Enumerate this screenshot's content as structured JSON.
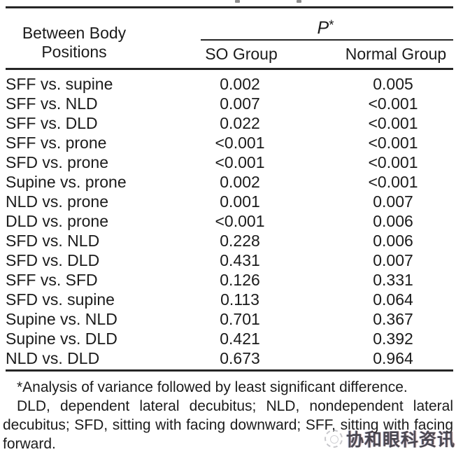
{
  "header": {
    "row_label_line1": "Between Body",
    "row_label_line2": "Positions",
    "p_label": "P",
    "p_star": "*",
    "so_group": "SO Group",
    "normal_group": "Normal Group"
  },
  "rows": [
    {
      "label": "SFF vs. supine",
      "so": "0.002",
      "normal": "0.005"
    },
    {
      "label": "SFF vs. NLD",
      "so": "0.007",
      "normal": "<0.001"
    },
    {
      "label": "SFF vs. DLD",
      "so": "0.022",
      "normal": "<0.001"
    },
    {
      "label": "SFF vs. prone",
      "so": "<0.001",
      "normal": "<0.001"
    },
    {
      "label": "SFD vs. prone",
      "so": "<0.001",
      "normal": "<0.001"
    },
    {
      "label": "Supine vs. prone",
      "so": "0.002",
      "normal": "<0.001"
    },
    {
      "label": "NLD vs. prone",
      "so": "0.001",
      "normal": "0.007"
    },
    {
      "label": "DLD vs. prone",
      "so": "<0.001",
      "normal": "0.006"
    },
    {
      "label": "SFD vs. NLD",
      "so": "0.228",
      "normal": "0.006"
    },
    {
      "label": "SFD vs. DLD",
      "so": "0.431",
      "normal": "0.007"
    },
    {
      "label": "SFF vs. SFD",
      "so": "0.126",
      "normal": "0.331"
    },
    {
      "label": "SFD vs. supine",
      "so": "0.113",
      "normal": "0.064"
    },
    {
      "label": "Supine vs. NLD",
      "so": "0.701",
      "normal": "0.367"
    },
    {
      "label": "Supine vs. DLD",
      "so": "0.421",
      "normal": "0.392"
    },
    {
      "label": "NLD vs. DLD",
      "so": "0.673",
      "normal": "0.964"
    }
  ],
  "footnotes": {
    "line1": "*Analysis of variance followed by least significant difference.",
    "line2": "DLD, dependent lateral decubitus; NLD, nondependent lateral decubitus; SFD, sitting with facing downward; SFF, sitting with facing forward."
  },
  "watermark": {
    "text": "协和眼科资讯"
  },
  "colors": {
    "text": "#1b1b1b",
    "rule": "#262626",
    "background": "#ffffff"
  }
}
